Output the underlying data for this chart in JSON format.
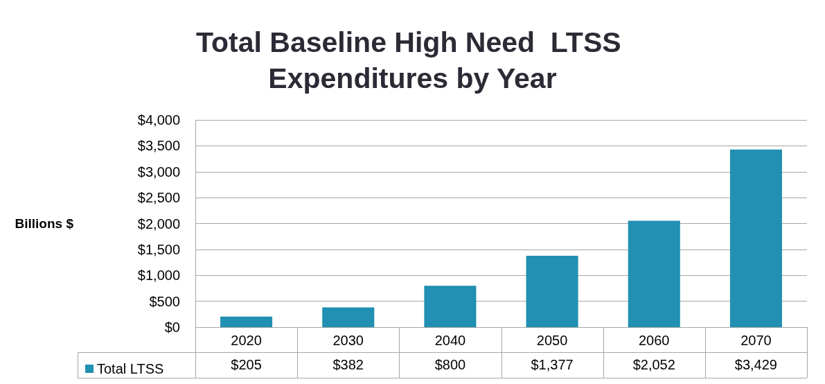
{
  "chart_data": {
    "type": "bar",
    "title": "Total Baseline High Need  LTSS Expenditures by Year",
    "ylabel": "Billions $",
    "categories": [
      "2020",
      "2030",
      "2040",
      "2050",
      "2060",
      "2070"
    ],
    "series": [
      {
        "name": "Total LTSS",
        "color": "#2190b2",
        "values": [
          205,
          382,
          800,
          1377,
          2052,
          3429
        ],
        "value_labels": [
          "$205",
          "$382",
          "$800",
          "$1,377",
          "$2,052",
          "$3,429"
        ]
      }
    ],
    "ylim": [
      0,
      4000
    ],
    "yticks": [
      {
        "value": 0,
        "label": "$0"
      },
      {
        "value": 500,
        "label": "$500"
      },
      {
        "value": 1000,
        "label": "$1,000"
      },
      {
        "value": 1500,
        "label": "$1,500"
      },
      {
        "value": 2000,
        "label": "$2,000"
      },
      {
        "value": 2500,
        "label": "$2,500"
      },
      {
        "value": 3000,
        "label": "$3,000"
      },
      {
        "value": 3500,
        "label": "$3,500"
      },
      {
        "value": 4000,
        "label": "$4,000"
      }
    ],
    "grid": "y",
    "legend": "bottom left"
  }
}
